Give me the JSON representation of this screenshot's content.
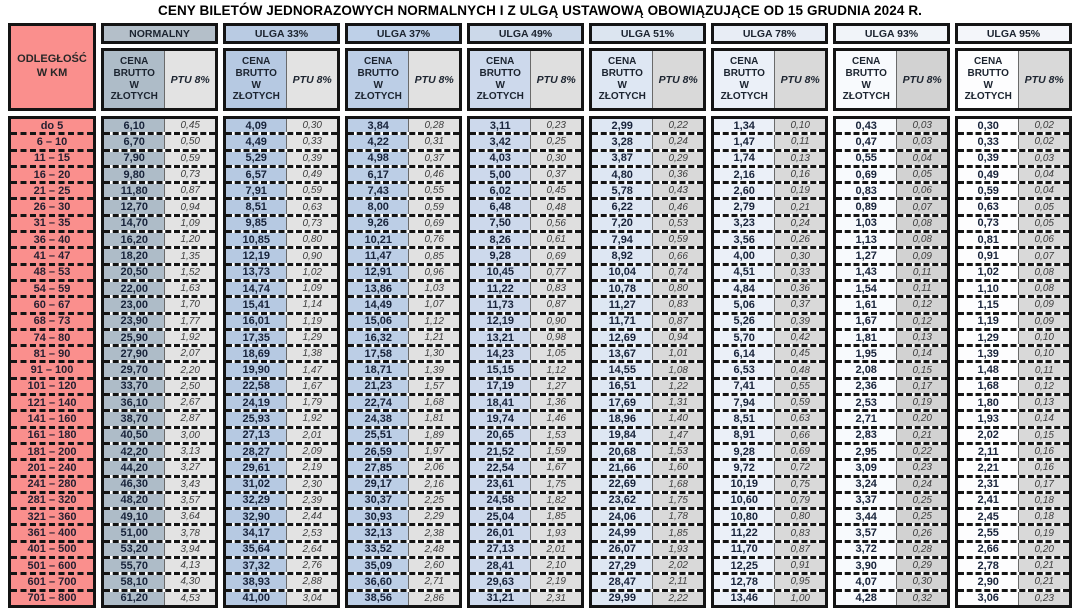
{
  "title": "CENY BILETÓW JEDNORAZOWYCH NORMALNYCH I Z ULGĄ USTAWOWĄ OBOWIĄZUJĄCE OD 15 GRUDNIA 2024 R.",
  "colors": {
    "distance_bg": "#fa8f8d",
    "border": "#141414"
  },
  "table": {
    "distance_header": "ODLEGŁOŚĆ\nW KM",
    "price_header": "CENA\nBRUTTO\nW\nZŁOTYCH",
    "ptu_header": "PTU 8%",
    "groups": [
      {
        "label": "NORMALNY",
        "label_bg": "#b4bfc9",
        "cena_bg": "#aebcc8",
        "ptu_bg": "#e3e3e3"
      },
      {
        "label": "ULGA 33%",
        "label_bg": "#b9cbe3",
        "cena_bg": "#b6c9e2",
        "ptu_bg": "#e3e3e3"
      },
      {
        "label": "ULGA 37%",
        "label_bg": "#bed0e8",
        "cena_bg": "#bccee6",
        "ptu_bg": "#e1e1e1"
      },
      {
        "label": "ULGA 49%",
        "label_bg": "#ccd9ea",
        "cena_bg": "#cdd9ec",
        "ptu_bg": "#dfdfdf"
      },
      {
        "label": "ULGA 51%",
        "label_bg": "#dce5f0",
        "cena_bg": "#dee7f3",
        "ptu_bg": "#d9d9d9"
      },
      {
        "label": "ULGA 78%",
        "label_bg": "#e8edf5",
        "cena_bg": "#ebf0f8",
        "ptu_bg": "#d9d9d9"
      },
      {
        "label": "ULGA 93%",
        "label_bg": "#f1f4f9",
        "cena_bg": "#f8fafd",
        "ptu_bg": "#d2d2d2"
      },
      {
        "label": "ULGA 95%",
        "label_bg": "#f4f6fa",
        "cena_bg": "#fdfdfe",
        "ptu_bg": "#d9d9d9"
      }
    ],
    "rows": [
      {
        "km": "do 5",
        "cells": [
          "6,10",
          "0,45",
          "4,09",
          "0,30",
          "3,84",
          "0,28",
          "3,11",
          "0,23",
          "2,99",
          "0,22",
          "1,34",
          "0,10",
          "0,43",
          "0,03",
          "0,30",
          "0,02"
        ]
      },
      {
        "km": "6 – 10",
        "cells": [
          "6,70",
          "0,50",
          "4,49",
          "0,33",
          "4,22",
          "0,31",
          "3,42",
          "0,25",
          "3,28",
          "0,24",
          "1,47",
          "0,11",
          "0,47",
          "0,03",
          "0,33",
          "0,02"
        ]
      },
      {
        "km": "11 – 15",
        "cells": [
          "7,90",
          "0,59",
          "5,29",
          "0,39",
          "4,98",
          "0,37",
          "4,03",
          "0,30",
          "3,87",
          "0,29",
          "1,74",
          "0,13",
          "0,55",
          "0,04",
          "0,39",
          "0,03"
        ]
      },
      {
        "km": "16 – 20",
        "cells": [
          "9,80",
          "0,73",
          "6,57",
          "0,49",
          "6,17",
          "0,46",
          "5,00",
          "0,37",
          "4,80",
          "0,36",
          "2,16",
          "0,16",
          "0,69",
          "0,05",
          "0,49",
          "0,04"
        ]
      },
      {
        "km": "21 – 25",
        "cells": [
          "11,80",
          "0,87",
          "7,91",
          "0,59",
          "7,43",
          "0,55",
          "6,02",
          "0,45",
          "5,78",
          "0,43",
          "2,60",
          "0,19",
          "0,83",
          "0,06",
          "0,59",
          "0,04"
        ]
      },
      {
        "km": "26 – 30",
        "cells": [
          "12,70",
          "0,94",
          "8,51",
          "0,63",
          "8,00",
          "0,59",
          "6,48",
          "0,48",
          "6,22",
          "0,46",
          "2,79",
          "0,21",
          "0,89",
          "0,07",
          "0,63",
          "0,05"
        ]
      },
      {
        "km": "31 – 35",
        "cells": [
          "14,70",
          "1,09",
          "9,85",
          "0,73",
          "9,26",
          "0,69",
          "7,50",
          "0,56",
          "7,20",
          "0,53",
          "3,23",
          "0,24",
          "1,03",
          "0,08",
          "0,73",
          "0,05"
        ]
      },
      {
        "km": "36 – 40",
        "cells": [
          "16,20",
          "1,20",
          "10,85",
          "0,80",
          "10,21",
          "0,76",
          "8,26",
          "0,61",
          "7,94",
          "0,59",
          "3,56",
          "0,26",
          "1,13",
          "0,08",
          "0,81",
          "0,06"
        ]
      },
      {
        "km": "41 – 47",
        "cells": [
          "18,20",
          "1,35",
          "12,19",
          "0,90",
          "11,47",
          "0,85",
          "9,28",
          "0,69",
          "8,92",
          "0,66",
          "4,00",
          "0,30",
          "1,27",
          "0,09",
          "0,91",
          "0,07"
        ]
      },
      {
        "km": "48 – 53",
        "cells": [
          "20,50",
          "1,52",
          "13,73",
          "1,02",
          "12,91",
          "0,96",
          "10,45",
          "0,77",
          "10,04",
          "0,74",
          "4,51",
          "0,33",
          "1,43",
          "0,11",
          "1,02",
          "0,08"
        ]
      },
      {
        "km": "54 – 59",
        "cells": [
          "22,00",
          "1,63",
          "14,74",
          "1,09",
          "13,86",
          "1,03",
          "11,22",
          "0,83",
          "10,78",
          "0,80",
          "4,84",
          "0,36",
          "1,54",
          "0,11",
          "1,10",
          "0,08"
        ]
      },
      {
        "km": "60 – 67",
        "cells": [
          "23,00",
          "1,70",
          "15,41",
          "1,14",
          "14,49",
          "1,07",
          "11,73",
          "0,87",
          "11,27",
          "0,83",
          "5,06",
          "0,37",
          "1,61",
          "0,12",
          "1,15",
          "0,09"
        ]
      },
      {
        "km": "68 – 73",
        "cells": [
          "23,90",
          "1,77",
          "16,01",
          "1,19",
          "15,06",
          "1,12",
          "12,19",
          "0,90",
          "11,71",
          "0,87",
          "5,26",
          "0,39",
          "1,67",
          "0,12",
          "1,19",
          "0,09"
        ]
      },
      {
        "km": "74 – 80",
        "cells": [
          "25,90",
          "1,92",
          "17,35",
          "1,29",
          "16,32",
          "1,21",
          "13,21",
          "0,98",
          "12,69",
          "0,94",
          "5,70",
          "0,42",
          "1,81",
          "0,13",
          "1,29",
          "0,10"
        ]
      },
      {
        "km": "81 – 90",
        "cells": [
          "27,90",
          "2,07",
          "18,69",
          "1,38",
          "17,58",
          "1,30",
          "14,23",
          "1,05",
          "13,67",
          "1,01",
          "6,14",
          "0,45",
          "1,95",
          "0,14",
          "1,39",
          "0,10"
        ]
      },
      {
        "km": "91 – 100",
        "cells": [
          "29,70",
          "2,20",
          "19,90",
          "1,47",
          "18,71",
          "1,39",
          "15,15",
          "1,12",
          "14,55",
          "1,08",
          "6,53",
          "0,48",
          "2,08",
          "0,15",
          "1,48",
          "0,11"
        ]
      },
      {
        "km": "101 – 120",
        "cells": [
          "33,70",
          "2,50",
          "22,58",
          "1,67",
          "21,23",
          "1,57",
          "17,19",
          "1,27",
          "16,51",
          "1,22",
          "7,41",
          "0,55",
          "2,36",
          "0,17",
          "1,68",
          "0,12"
        ]
      },
      {
        "km": "121 – 140",
        "cells": [
          "36,10",
          "2,67",
          "24,19",
          "1,79",
          "22,74",
          "1,68",
          "18,41",
          "1,36",
          "17,69",
          "1,31",
          "7,94",
          "0,59",
          "2,53",
          "0,19",
          "1,80",
          "0,13"
        ]
      },
      {
        "km": "141 – 160",
        "cells": [
          "38,70",
          "2,87",
          "25,93",
          "1,92",
          "24,38",
          "1,81",
          "19,74",
          "1,46",
          "18,96",
          "1,40",
          "8,51",
          "0,63",
          "2,71",
          "0,20",
          "1,93",
          "0,14"
        ]
      },
      {
        "km": "161 – 180",
        "cells": [
          "40,50",
          "3,00",
          "27,13",
          "2,01",
          "25,51",
          "1,89",
          "20,65",
          "1,53",
          "19,84",
          "1,47",
          "8,91",
          "0,66",
          "2,83",
          "0,21",
          "2,02",
          "0,15"
        ]
      },
      {
        "km": "181 – 200",
        "cells": [
          "42,20",
          "3,13",
          "28,27",
          "2,09",
          "26,59",
          "1,97",
          "21,52",
          "1,59",
          "20,68",
          "1,53",
          "9,28",
          "0,69",
          "2,95",
          "0,22",
          "2,11",
          "0,16"
        ]
      },
      {
        "km": "201 – 240",
        "cells": [
          "44,20",
          "3,27",
          "29,61",
          "2,19",
          "27,85",
          "2,06",
          "22,54",
          "1,67",
          "21,66",
          "1,60",
          "9,72",
          "0,72",
          "3,09",
          "0,23",
          "2,21",
          "0,16"
        ]
      },
      {
        "km": "241 – 280",
        "cells": [
          "46,30",
          "3,43",
          "31,02",
          "2,30",
          "29,17",
          "2,16",
          "23,61",
          "1,75",
          "22,69",
          "1,68",
          "10,19",
          "0,75",
          "3,24",
          "0,24",
          "2,31",
          "0,17"
        ]
      },
      {
        "km": "281 – 320",
        "cells": [
          "48,20",
          "3,57",
          "32,29",
          "2,39",
          "30,37",
          "2,25",
          "24,58",
          "1,82",
          "23,62",
          "1,75",
          "10,60",
          "0,79",
          "3,37",
          "0,25",
          "2,41",
          "0,18"
        ]
      },
      {
        "km": "321 – 360",
        "cells": [
          "49,10",
          "3,64",
          "32,90",
          "2,44",
          "30,93",
          "2,29",
          "25,04",
          "1,85",
          "24,06",
          "1,78",
          "10,80",
          "0,80",
          "3,44",
          "0,25",
          "2,45",
          "0,18"
        ]
      },
      {
        "km": "361 – 400",
        "cells": [
          "51,00",
          "3,78",
          "34,17",
          "2,53",
          "32,13",
          "2,38",
          "26,01",
          "1,93",
          "24,99",
          "1,85",
          "11,22",
          "0,83",
          "3,57",
          "0,26",
          "2,55",
          "0,19"
        ]
      },
      {
        "km": "401 – 500",
        "cells": [
          "53,20",
          "3,94",
          "35,64",
          "2,64",
          "33,52",
          "2,48",
          "27,13",
          "2,01",
          "26,07",
          "1,93",
          "11,70",
          "0,87",
          "3,72",
          "0,28",
          "2,66",
          "0,20"
        ]
      },
      {
        "km": "501 – 600",
        "cells": [
          "55,70",
          "4,13",
          "37,32",
          "2,76",
          "35,09",
          "2,60",
          "28,41",
          "2,10",
          "27,29",
          "2,02",
          "12,25",
          "0,91",
          "3,90",
          "0,29",
          "2,78",
          "0,21"
        ]
      },
      {
        "km": "601 – 700",
        "cells": [
          "58,10",
          "4,30",
          "38,93",
          "2,88",
          "36,60",
          "2,71",
          "29,63",
          "2,19",
          "28,47",
          "2,11",
          "12,78",
          "0,95",
          "4,07",
          "0,30",
          "2,90",
          "0,21"
        ]
      },
      {
        "km": "701 – 800",
        "cells": [
          "61,20",
          "4,53",
          "41,00",
          "3,04",
          "38,56",
          "2,86",
          "31,21",
          "2,31",
          "29,99",
          "2,22",
          "13,46",
          "1,00",
          "4,28",
          "0,32",
          "3,06",
          "0,23"
        ]
      }
    ]
  }
}
